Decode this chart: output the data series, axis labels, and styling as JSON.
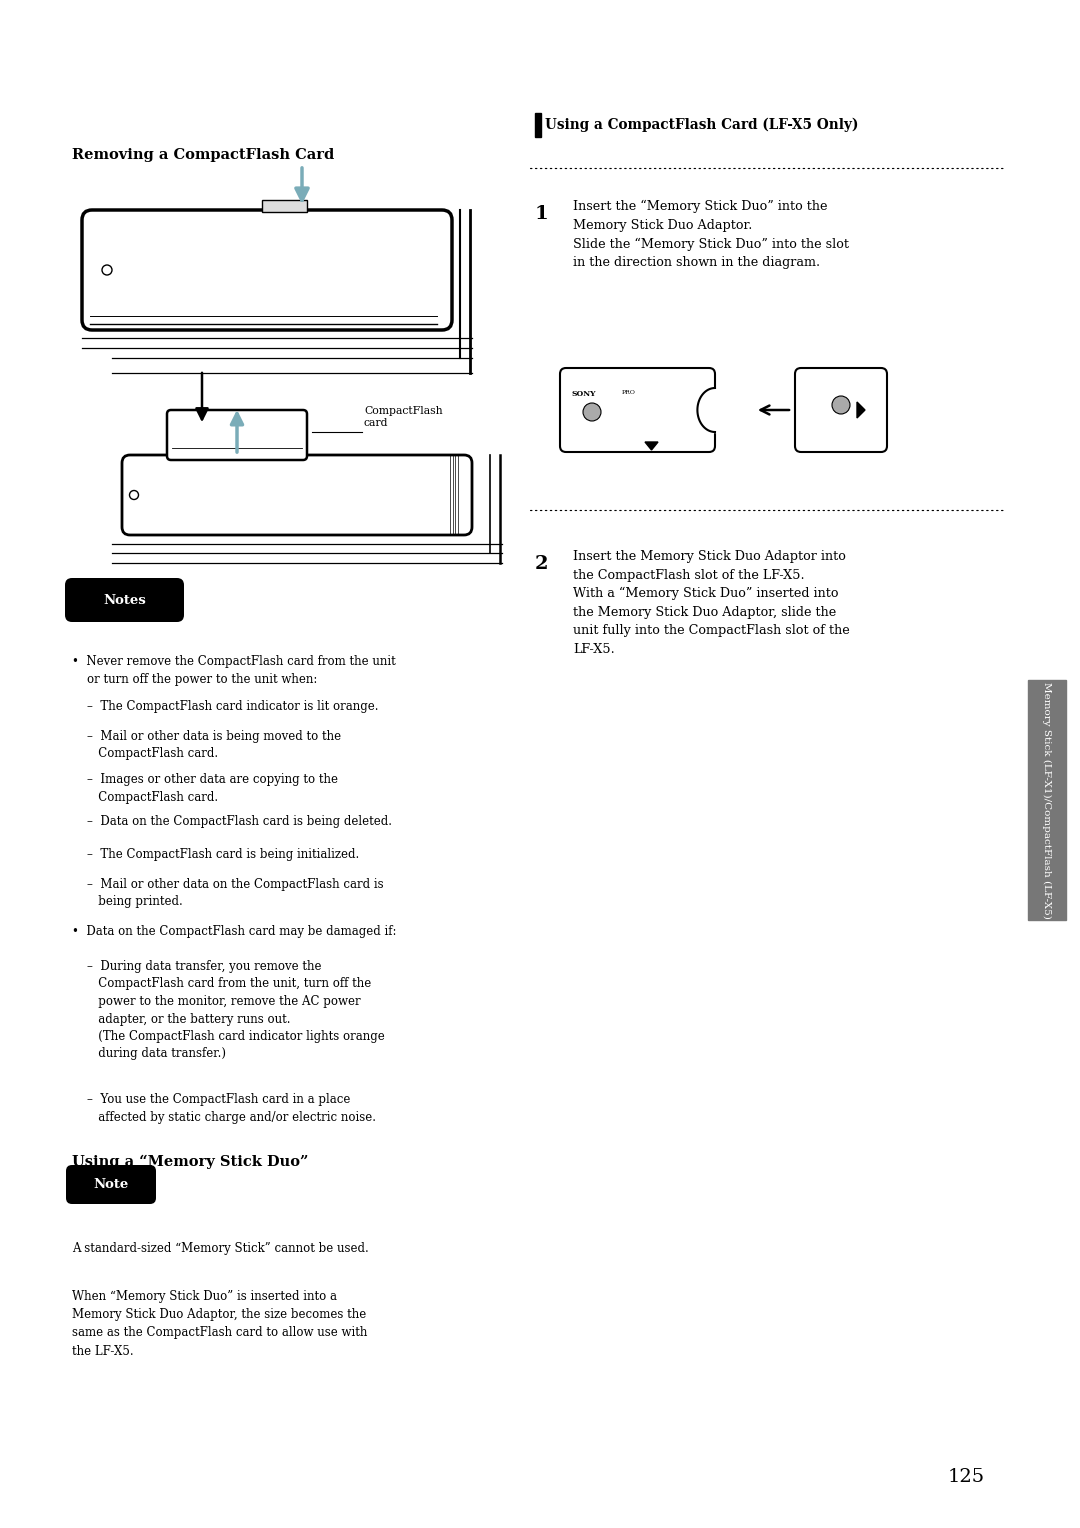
{
  "page_bg": "#ffffff",
  "page_width": 10.8,
  "page_height": 15.28,
  "lm": 0.72,
  "rcx": 5.35,
  "section1_title": "Removing a CompactFlash Card",
  "right_section_title": "Using a CompactFlash Card (LF-X5 Only)",
  "step1_text": "Insert the “Memory Stick Duo” into the\nMemory Stick Duo Adaptor.\nSlide the “Memory Stick Duo” into the slot\nin the direction shown in the diagram.",
  "step2_text": "Insert the Memory Stick Duo Adaptor into\nthe CompactFlash slot of the LF-X5.\nWith a “Memory Stick Duo” inserted into\nthe Memory Stick Duo Adaptor, slide the\nunit fully into the CompactFlash slot of the\nLF-X5.",
  "notes_label": "Notes",
  "note_label": "Note",
  "section2_title": "Using a “Memory Stick Duo”",
  "note_text": "A standard-sized “Memory Stick” cannot be used.",
  "memory_stick_duo_text": "When “Memory Stick Duo” is inserted into a\nMemory Stick Duo Adaptor, the size becomes the\nsame as the CompactFlash card to allow use with\nthe LF-X5.",
  "notes_bullets": [
    [
      "•  Never remove the CompactFlash card from the unit\n    or turn off the power to the unit when:",
      false
    ],
    [
      "    –  The CompactFlash card indicator is lit orange.",
      false
    ],
    [
      "    –  Mail or other data is being moved to the\n       CompactFlash card.",
      false
    ],
    [
      "    –  Images or other data are copying to the\n       CompactFlash card.",
      false
    ],
    [
      "    –  Data on the CompactFlash card is being deleted.",
      false
    ],
    [
      "    –  The CompactFlash card is being initialized.",
      false
    ],
    [
      "    –  Mail or other data on the CompactFlash card is\n       being printed.",
      false
    ],
    [
      "•  Data on the CompactFlash card may be damaged if:",
      false
    ],
    [
      "    –  During data transfer, you remove the\n       CompactFlash card from the unit, turn off the\n       power to the monitor, remove the AC power\n       adapter, or the battery runs out.\n       (The CompactFlash card indicator lights orange\n       during data transfer.)",
      false
    ],
    [
      "    –  You use the CompactFlash card in a place\n       affected by static charge and/or electric noise.",
      false
    ]
  ],
  "page_number": "125",
  "sidebar_text": "Memory Stick (LF-X1)/CompactFlash (LF-X5)",
  "arrow_color": "#7aacb8",
  "sidebar_color": "#777777"
}
